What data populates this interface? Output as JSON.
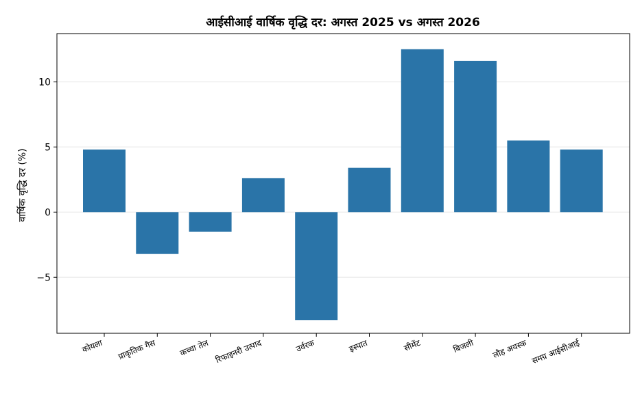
{
  "chart_data": {
    "type": "bar",
    "title": "आईसीआई वार्षिक वृद्धि दर: अगस्त 2025 vs अगस्त 2026",
    "xlabel": "",
    "ylabel": "वार्षिक वृद्धि दर (%)",
    "categories": [
      "कोयला",
      "प्राकृतिक गैस",
      "कच्चा तेल",
      "रिफाइनरी उत्पाद",
      "उर्वरक",
      "इस्पात",
      "सीमेंट",
      "बिजली",
      "लौह अयस्क",
      "समग्र आईसीआई"
    ],
    "values": [
      4.8,
      -3.2,
      -1.5,
      2.6,
      -8.3,
      3.4,
      12.5,
      11.6,
      5.5,
      4.8
    ],
    "ylim": [
      -9.3,
      13.7
    ],
    "yticks": [
      -5,
      0,
      5,
      10
    ],
    "ytick_labels": [
      "−5",
      "0",
      "5",
      "10"
    ],
    "grid": true,
    "bar_color": "#2a74a8"
  }
}
